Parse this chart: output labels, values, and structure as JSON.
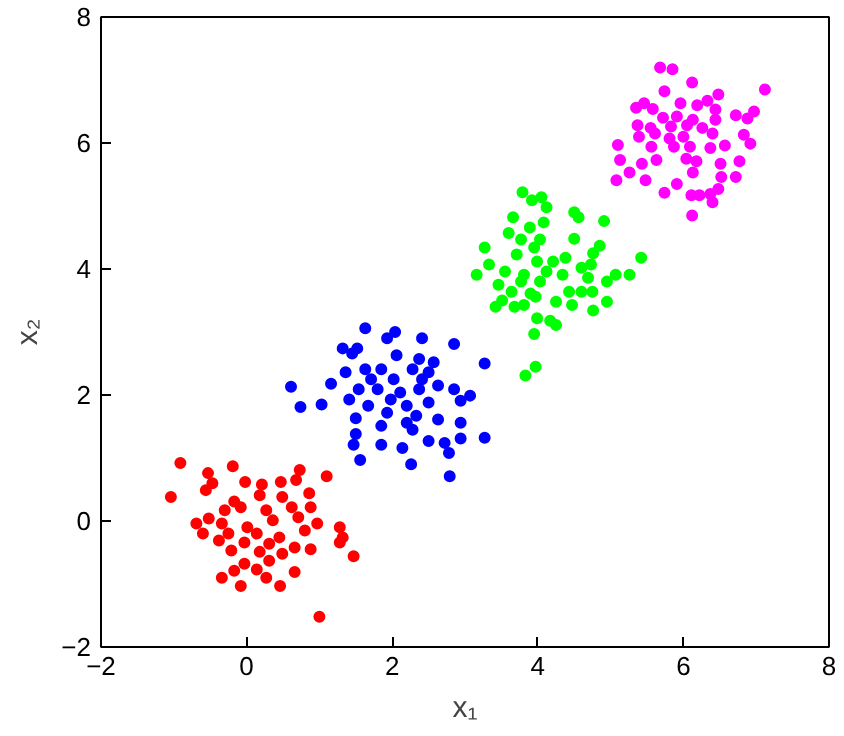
{
  "chart_data": {
    "type": "scatter",
    "xlabel": "x₁",
    "ylabel": "x₂",
    "xlim": [
      -2,
      8
    ],
    "ylim": [
      -2,
      8
    ],
    "xticks": [
      -2,
      0,
      2,
      4,
      6,
      8
    ],
    "yticks": [
      -2,
      0,
      2,
      4,
      6,
      8
    ],
    "marker": "circle",
    "series": [
      {
        "color": "#ff0000",
        "x": [
          -0.91,
          -0.19,
          -0.53,
          0.73,
          -0.47,
          -0.56,
          -0.02,
          0.21,
          0.47,
          0.68,
          1.1,
          -1.04,
          0.18,
          0.49,
          0.86,
          -0.17,
          -0.3,
          -0.52,
          -0.08,
          0.27,
          0.62,
          0.88,
          -0.69,
          -0.34,
          0.01,
          0.36,
          0.71,
          0.97,
          1.28,
          -0.6,
          -0.25,
          0.14,
          0.45,
          0.8,
          1.32,
          -0.38,
          -0.03,
          0.31,
          0.66,
          0.88,
          1.28,
          -0.21,
          0.18,
          0.49,
          1.47,
          -0.03,
          0.31,
          -0.34,
          -0.17,
          0.14,
          0.66,
          0.27,
          -0.08,
          0.46,
          1.0
        ],
        "values": [
          0.92,
          0.87,
          0.76,
          0.81,
          0.6,
          0.49,
          0.62,
          0.58,
          0.62,
          0.65,
          0.71,
          0.38,
          0.41,
          0.38,
          0.44,
          0.31,
          0.17,
          0.04,
          0.22,
          0.17,
          0.22,
          0.22,
          -0.04,
          -0.04,
          -0.1,
          0.01,
          0.06,
          -0.04,
          -0.1,
          -0.2,
          -0.2,
          -0.2,
          -0.26,
          -0.15,
          -0.26,
          -0.31,
          -0.34,
          -0.36,
          -0.42,
          -0.45,
          -0.34,
          -0.47,
          -0.49,
          -0.52,
          -0.56,
          -0.68,
          -0.63,
          -0.9,
          -0.79,
          -0.77,
          -0.81,
          -0.9,
          -1.03,
          -1.03,
          -1.52
        ]
      },
      {
        "color": "#0000ff",
        "x": [
          1.63,
          1.93,
          2.04,
          2.41,
          2.85,
          1.32,
          1.45,
          1.52,
          2.06,
          2.37,
          2.57,
          1.63,
          1.85,
          2.28,
          2.5,
          3.27,
          1.36,
          1.16,
          1.71,
          2.02,
          2.41,
          0.61,
          1.54,
          1.8,
          2.11,
          2.37,
          2.63,
          2.85,
          3.07,
          1.03,
          0.74,
          1.41,
          1.67,
          1.98,
          2.2,
          2.5,
          2.94,
          1.93,
          2.33,
          2.63,
          1.5,
          1.85,
          2.2,
          2.94,
          2.28,
          1.5,
          2.5,
          2.72,
          2.94,
          3.27,
          1.47,
          1.85,
          2.14,
          2.78,
          1.56,
          2.26,
          2.79
        ],
        "values": [
          3.06,
          2.9,
          3.0,
          2.9,
          2.81,
          2.74,
          2.66,
          2.74,
          2.63,
          2.57,
          2.52,
          2.41,
          2.41,
          2.41,
          2.36,
          2.5,
          2.36,
          2.18,
          2.25,
          2.25,
          2.25,
          2.13,
          2.09,
          2.09,
          2.04,
          2.09,
          2.15,
          2.09,
          1.99,
          1.85,
          1.81,
          1.93,
          1.83,
          1.93,
          1.83,
          1.88,
          1.91,
          1.72,
          1.67,
          1.61,
          1.63,
          1.51,
          1.56,
          1.56,
          1.45,
          1.38,
          1.27,
          1.24,
          1.31,
          1.32,
          1.21,
          1.21,
          1.16,
          1.08,
          0.97,
          0.9,
          0.71
        ]
      },
      {
        "color": "#00ff00",
        "x": [
          3.79,
          4.05,
          3.92,
          4.12,
          3.66,
          4.5,
          4.56,
          4.91,
          3.6,
          3.89,
          4.08,
          3.77,
          4.03,
          4.5,
          3.27,
          3.95,
          4.85,
          4.76,
          5.42,
          3.33,
          3.71,
          3.99,
          4.21,
          4.38,
          4.73,
          3.16,
          3.55,
          3.81,
          4.12,
          4.34,
          4.6,
          5.07,
          5.26,
          3.46,
          3.77,
          4.03,
          4.69,
          4.95,
          3.64,
          3.9,
          4.43,
          4.6,
          4.75,
          3.51,
          3.81,
          4.25,
          4.95,
          3.42,
          3.68,
          3.97,
          4.47,
          4.76,
          3.99,
          4.17,
          4.25,
          3.95,
          3.97,
          3.83
        ],
        "values": [
          5.22,
          5.14,
          5.09,
          4.98,
          4.82,
          4.9,
          4.82,
          4.76,
          4.57,
          4.66,
          4.74,
          4.47,
          4.47,
          4.48,
          4.34,
          4.34,
          4.37,
          4.25,
          4.18,
          4.07,
          4.23,
          4.12,
          4.12,
          4.18,
          4.07,
          3.91,
          3.96,
          3.91,
          3.96,
          3.91,
          4.02,
          3.91,
          3.91,
          3.75,
          3.8,
          3.8,
          3.86,
          3.8,
          3.64,
          3.61,
          3.64,
          3.64,
          3.64,
          3.5,
          3.43,
          3.48,
          3.48,
          3.4,
          3.4,
          3.56,
          3.43,
          3.34,
          3.22,
          3.18,
          3.11,
          2.97,
          2.45,
          2.31
        ]
      },
      {
        "color": "#ff00ff",
        "x": [
          5.68,
          5.85,
          6.12,
          5.74,
          6.48,
          7.12,
          5.46,
          5.35,
          5.58,
          5.96,
          6.19,
          6.33,
          6.44,
          5.72,
          5.91,
          6.13,
          6.44,
          6.72,
          6.88,
          6.97,
          5.37,
          5.55,
          5.83,
          6.05,
          6.26,
          5.39,
          5.61,
          5.81,
          6.0,
          6.4,
          6.83,
          5.1,
          5.56,
          5.87,
          6.09,
          6.37,
          6.57,
          6.92,
          5.13,
          5.43,
          5.63,
          6.04,
          6.18,
          6.51,
          6.77,
          5.26,
          6.13,
          6.52,
          5.08,
          5.48,
          6.72,
          5.91,
          6.48,
          5.74,
          6.11,
          6.22,
          6.37,
          6.4,
          6.12
        ],
        "values": [
          7.2,
          7.17,
          6.96,
          6.82,
          6.77,
          6.85,
          6.63,
          6.56,
          6.54,
          6.63,
          6.6,
          6.67,
          6.53,
          6.4,
          6.42,
          6.37,
          6.37,
          6.44,
          6.39,
          6.5,
          6.28,
          6.24,
          6.26,
          6.28,
          6.24,
          6.1,
          6.15,
          6.07,
          6.1,
          6.15,
          6.13,
          5.97,
          5.94,
          5.94,
          5.94,
          5.92,
          5.96,
          5.99,
          5.73,
          5.67,
          5.73,
          5.75,
          5.71,
          5.67,
          5.71,
          5.53,
          5.53,
          5.46,
          5.41,
          5.41,
          5.46,
          5.35,
          5.27,
          5.21,
          5.17,
          5.17,
          5.19,
          5.06,
          4.85
        ]
      }
    ]
  }
}
